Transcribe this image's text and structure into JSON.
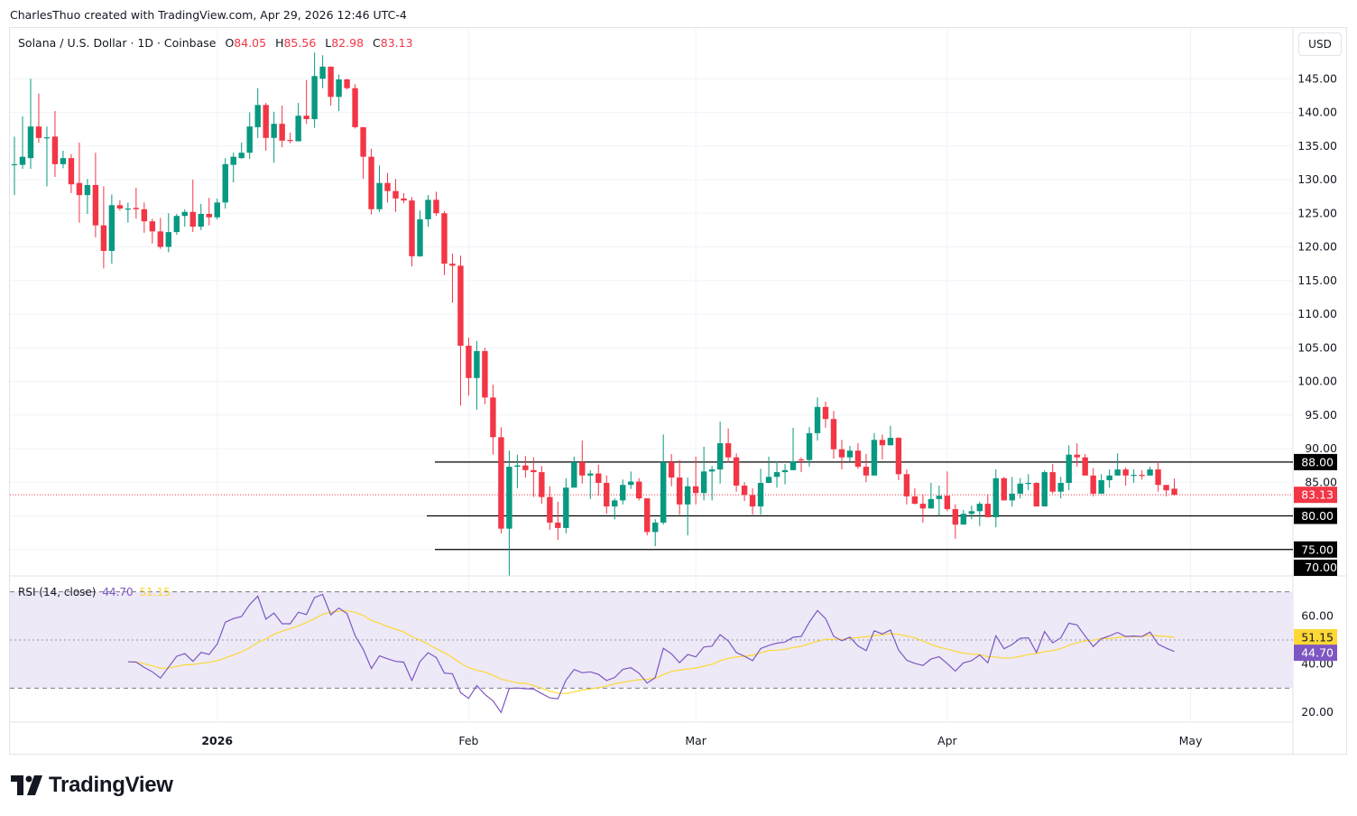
{
  "credit": "CharlesThuo created with TradingView.com, Apr 29, 2026 12:46 UTC-4",
  "legend": {
    "symbol": "Solana / U.S. Dollar · 1D · Coinbase",
    "o_label": "O",
    "o": "84.05",
    "h_label": "H",
    "h": "85.56",
    "l_label": "L",
    "l": "82.98",
    "c_label": "C",
    "c": "83.13"
  },
  "currency_button": "USD",
  "rsi_legend": {
    "label": "RSI (14, close)",
    "rsi": "44.70",
    "ma": "51.15"
  },
  "brand": "TradingView",
  "colors": {
    "up": "#089981",
    "down": "#f23645",
    "rsi": "#7e57c2",
    "rsi_ma": "#fdd835",
    "band": "#ede9f7"
  },
  "chart_data": {
    "type": "candlestick",
    "title": "Solana / U.S. Dollar · 1D · Coinbase",
    "first_date": "2025-12-07",
    "last_date": "2026-04-29",
    "ohlc": [
      [
        132.3,
        136.4,
        127.7,
        132.3
      ],
      [
        132.2,
        139.4,
        131.6,
        133.4
      ],
      [
        133.2,
        145,
        131.6,
        137.9
      ],
      [
        137.9,
        142.8,
        135.5,
        136.2
      ],
      [
        136.2,
        137.9,
        129,
        136.3
      ],
      [
        136.4,
        140.2,
        130.4,
        132.3
      ],
      [
        132.3,
        134.3,
        131.7,
        133.2
      ],
      [
        133.2,
        133.8,
        128,
        129.3
      ],
      [
        129.5,
        135.5,
        123.6,
        127.7
      ],
      [
        127.7,
        130.1,
        124.9,
        129.2
      ],
      [
        129.2,
        134,
        121.4,
        123.2
      ],
      [
        123.2,
        129,
        116.8,
        119.4
      ],
      [
        119.4,
        127.8,
        117.5,
        126.2
      ],
      [
        126.2,
        126.9,
        125.4,
        125.7
      ],
      [
        125.6,
        126.6,
        123.6,
        125.7
      ],
      [
        125.8,
        128.8,
        124.2,
        125.6
      ],
      [
        125.6,
        126.6,
        122.1,
        123.8
      ],
      [
        123.8,
        124.2,
        120.5,
        122.3
      ],
      [
        122.3,
        124.3,
        119.7,
        120
      ],
      [
        120,
        125,
        119.2,
        122.2
      ],
      [
        122.2,
        124.9,
        121.8,
        124.6
      ],
      [
        124.6,
        125.6,
        123,
        125.2
      ],
      [
        125.2,
        130,
        122.2,
        123
      ],
      [
        123,
        126.4,
        122.5,
        124.9
      ],
      [
        124.9,
        127.3,
        123.2,
        124.4
      ],
      [
        124.4,
        127.2,
        124.1,
        126.6
      ],
      [
        126.6,
        133.2,
        125.7,
        132.3
      ],
      [
        132.2,
        134,
        129.6,
        133.4
      ],
      [
        133.2,
        135.5,
        133.1,
        134
      ],
      [
        134,
        140,
        133.1,
        137.9
      ],
      [
        137.8,
        143.6,
        136.2,
        141.1
      ],
      [
        141.1,
        141.4,
        134.3,
        136.2
      ],
      [
        136.2,
        140.1,
        132.5,
        138.3
      ],
      [
        138.3,
        141,
        134.8,
        135.8
      ],
      [
        135.9,
        137,
        135.4,
        135.8
      ],
      [
        135.7,
        141.4,
        135.7,
        139.5
      ],
      [
        139.5,
        144.8,
        138.3,
        139
      ],
      [
        139,
        148.9,
        137.7,
        145.4
      ],
      [
        145,
        148.5,
        143.6,
        146.8
      ],
      [
        146.8,
        146.8,
        141,
        142.3
      ],
      [
        142.3,
        145.6,
        140.2,
        144.9
      ],
      [
        144.9,
        145,
        143.4,
        143.6
      ],
      [
        143.6,
        144.2,
        137.6,
        137.8
      ],
      [
        137.8,
        137.8,
        130.1,
        133.4
      ],
      [
        133.4,
        134.6,
        124.8,
        125.6
      ],
      [
        125.6,
        132.1,
        125.2,
        129.5
      ],
      [
        129.5,
        131,
        126.6,
        128.3
      ],
      [
        128.3,
        130.1,
        125.2,
        127.2
      ],
      [
        127.2,
        128,
        126.5,
        126.9
      ],
      [
        126.9,
        127.4,
        117.1,
        118.6
      ],
      [
        118.6,
        125.4,
        118.5,
        124.1
      ],
      [
        124.1,
        127.7,
        123,
        127
      ],
      [
        127,
        128.2,
        124.6,
        125
      ],
      [
        125,
        125.3,
        115.8,
        117.5
      ],
      [
        117.5,
        119,
        111.7,
        117.2
      ],
      [
        117.2,
        118.7,
        96.4,
        105.3
      ],
      [
        105.3,
        106.5,
        97.9,
        100.5
      ],
      [
        100.5,
        106,
        95.8,
        104.5
      ],
      [
        104.5,
        105,
        96.6,
        97.6
      ],
      [
        97.6,
        99.5,
        89.1,
        91.7
      ],
      [
        91.7,
        93.2,
        77.4,
        78.1
      ],
      [
        78.1,
        89.7,
        71.1,
        87.3
      ],
      [
        87.3,
        89.1,
        84.1,
        87.5
      ],
      [
        87.5,
        88.9,
        85.7,
        86.8
      ],
      [
        86.8,
        88.7,
        82.8,
        86.5
      ],
      [
        86.5,
        87.4,
        81.8,
        82.8
      ],
      [
        82.8,
        84.4,
        77.9,
        79
      ],
      [
        79,
        82.1,
        76.4,
        78.2
      ],
      [
        78.2,
        85.6,
        77.4,
        84.2
      ],
      [
        84.2,
        88.8,
        84.2,
        88
      ],
      [
        88,
        91.2,
        84.8,
        86
      ],
      [
        86,
        86.8,
        82.5,
        86.3
      ],
      [
        86.3,
        87.6,
        83,
        84.9
      ],
      [
        84.9,
        86,
        80.3,
        81.4
      ],
      [
        81.4,
        82.6,
        79.5,
        82.3
      ],
      [
        82.3,
        85.4,
        81.7,
        84.6
      ],
      [
        84.6,
        86.6,
        84,
        85.1
      ],
      [
        85.1,
        85.6,
        82.3,
        82.6
      ],
      [
        82.6,
        82.6,
        77.1,
        77.6
      ],
      [
        77.6,
        79.5,
        75.5,
        79
      ],
      [
        79,
        92.1,
        78.7,
        88
      ],
      [
        88,
        89.2,
        84.4,
        85.7
      ],
      [
        85.7,
        88.3,
        80.2,
        81.7
      ],
      [
        81.7,
        85.7,
        77.1,
        84.4
      ],
      [
        84.4,
        88.8,
        81.7,
        83.4
      ],
      [
        83.4,
        90.3,
        82.3,
        86.6
      ],
      [
        86.6,
        87.4,
        82.3,
        86.9
      ],
      [
        86.9,
        94,
        84.8,
        90.8
      ],
      [
        90.8,
        93,
        87.9,
        88.7
      ],
      [
        88.7,
        89.3,
        83.6,
        84.5
      ],
      [
        84.5,
        85,
        82.2,
        83.1
      ],
      [
        83.1,
        84.1,
        80.2,
        81.4
      ],
      [
        81.4,
        87,
        80.2,
        84.9
      ],
      [
        84.9,
        88.8,
        84.9,
        85.8
      ],
      [
        85.8,
        88.1,
        84.2,
        86.5
      ],
      [
        86.5,
        87.7,
        84.7,
        86.8
      ],
      [
        86.8,
        93.1,
        86.8,
        88.1
      ],
      [
        88.4,
        88.7,
        86.5,
        88.3
      ],
      [
        88.3,
        93.2,
        87.3,
        92.3
      ],
      [
        92.3,
        97.6,
        91.2,
        96.2
      ],
      [
        96.2,
        97,
        93.1,
        94.4
      ],
      [
        94.4,
        95.6,
        88.5,
        89.9
      ],
      [
        89.9,
        91.3,
        86.9,
        88.7
      ],
      [
        88.7,
        90.4,
        88.1,
        89.7
      ],
      [
        89.7,
        90.8,
        87,
        87.3
      ],
      [
        87.3,
        89.2,
        85,
        86
      ],
      [
        86,
        92.3,
        86,
        91.3
      ],
      [
        91.3,
        92.1,
        88.4,
        90.5
      ],
      [
        90.5,
        93.4,
        90.5,
        91.6
      ],
      [
        91.6,
        91.7,
        85.3,
        86.2
      ],
      [
        86.2,
        86.9,
        81.7,
        82.9
      ],
      [
        82.9,
        84.1,
        81.7,
        81.8
      ],
      [
        81.8,
        83.2,
        79,
        81.1
      ],
      [
        81.1,
        84.9,
        81.1,
        82.5
      ],
      [
        82.5,
        84.5,
        80,
        83
      ],
      [
        83,
        86.6,
        80.7,
        81
      ],
      [
        81,
        81.7,
        76.6,
        78.7
      ],
      [
        78.7,
        80.9,
        78.7,
        80.3
      ],
      [
        80.3,
        81.5,
        79.5,
        80.7
      ],
      [
        80.7,
        82.1,
        78.5,
        81.8
      ],
      [
        81.8,
        83.2,
        79.8,
        79.8
      ],
      [
        79.8,
        86.9,
        78.3,
        85.6
      ],
      [
        85.6,
        85.8,
        82.3,
        82.3
      ],
      [
        82.3,
        85.8,
        81.4,
        83.3
      ],
      [
        83.3,
        85.6,
        82.6,
        84.8
      ],
      [
        84.8,
        86.2,
        83.8,
        84.9
      ],
      [
        84.9,
        85,
        81.4,
        81.4
      ],
      [
        81.4,
        86.8,
        81.4,
        86.5
      ],
      [
        86.5,
        87.7,
        83.3,
        83.6
      ],
      [
        83.6,
        85.8,
        82.6,
        84.9
      ],
      [
        84.9,
        90.5,
        83.8,
        89.1
      ],
      [
        89.1,
        90.8,
        87.3,
        88.7
      ],
      [
        88.7,
        89.2,
        86,
        86
      ],
      [
        86,
        87.1,
        82.9,
        83.3
      ],
      [
        83.3,
        86.2,
        83.3,
        85.3
      ],
      [
        85.3,
        86.9,
        84.2,
        86
      ],
      [
        86,
        89.3,
        86,
        86.9
      ],
      [
        86.9,
        87.2,
        84.5,
        86
      ],
      [
        86,
        86.9,
        84.9,
        86.1
      ],
      [
        86.1,
        86.8,
        85.4,
        86
      ],
      [
        86,
        87.3,
        86,
        86.9
      ],
      [
        86.9,
        88.1,
        83.6,
        84.6
      ],
      [
        84.6,
        84.6,
        82.9,
        83.8
      ],
      [
        84.05,
        85.56,
        82.98,
        83.13
      ]
    ],
    "horizontal_levels": [
      "88.00",
      "80.00",
      "75.00"
    ],
    "last_price": "83.13",
    "y_ticks": [
      "145.00",
      "140.00",
      "135.00",
      "130.00",
      "125.00",
      "120.00",
      "115.00",
      "110.00",
      "105.00",
      "100.00",
      "95.00",
      "90.00",
      "85.00",
      "70.00"
    ],
    "x_ticks": [
      {
        "label": "2026",
        "date": "2026-01-01",
        "bold": true
      },
      {
        "label": "Feb",
        "date": "2026-02-01"
      },
      {
        "label": "Mar",
        "date": "2026-03-01"
      },
      {
        "label": "Apr",
        "date": "2026-04-01"
      },
      {
        "label": "May",
        "date": "2026-05-01"
      }
    ],
    "rsi": {
      "period": 14,
      "ma_period": 14,
      "upper": 70,
      "middle": 50,
      "lower": 30,
      "y_ticks": [
        "60.00",
        "40.00",
        "20.00"
      ],
      "last_rsi": "44.70",
      "last_ma": "51.15"
    }
  }
}
